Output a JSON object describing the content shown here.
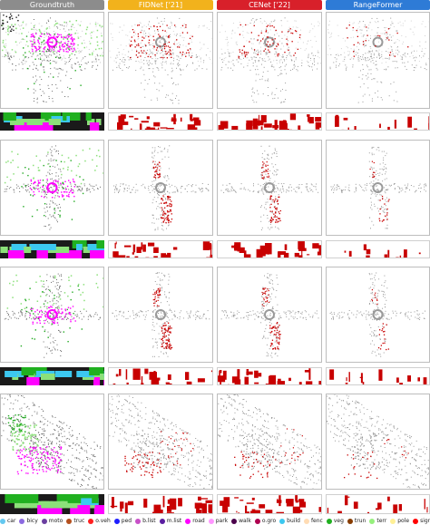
{
  "columns": [
    {
      "label": "Groundtruth",
      "color": "#8c8c8c"
    },
    {
      "label": "FIDNet ['21]",
      "color": "#f2b21c"
    },
    {
      "label": "CENet ['22]",
      "color": "#d8202a"
    },
    {
      "label": "RangeFormer",
      "color": "#2e7bd6"
    }
  ],
  "legend": [
    {
      "label": "car",
      "color": "#64c8f0"
    },
    {
      "label": "bicy",
      "color": "#8c6ae0"
    },
    {
      "label": "moto",
      "color": "#6b3fa0"
    },
    {
      "label": "truc",
      "color": "#b4501e"
    },
    {
      "label": "o.veh",
      "color": "#ff2020"
    },
    {
      "label": "ped",
      "color": "#1e1eff"
    },
    {
      "label": "b.list",
      "color": "#c850c8"
    },
    {
      "label": "m.list",
      "color": "#5a1ea0"
    },
    {
      "label": "road",
      "color": "#ff00ff"
    },
    {
      "label": "park",
      "color": "#ff96ff"
    },
    {
      "label": "walk",
      "color": "#4b004b"
    },
    {
      "label": "o.gro",
      "color": "#af0050"
    },
    {
      "label": "build",
      "color": "#3cc8f0"
    },
    {
      "label": "fenc",
      "color": "#ffdcb4"
    },
    {
      "label": "veg",
      "color": "#20b020"
    },
    {
      "label": "trun",
      "color": "#873c00"
    },
    {
      "label": "terr",
      "color": "#96f07d"
    },
    {
      "label": "pole",
      "color": "#fff096"
    },
    {
      "label": "sign",
      "color": "#ff0000"
    }
  ],
  "colors": {
    "error": "#c80000",
    "correct": "#9a9a9a",
    "road": "#ff00ff",
    "vegetation": "#22aa22",
    "terrain": "#8ce07a",
    "building": "#3cc8f0"
  }
}
